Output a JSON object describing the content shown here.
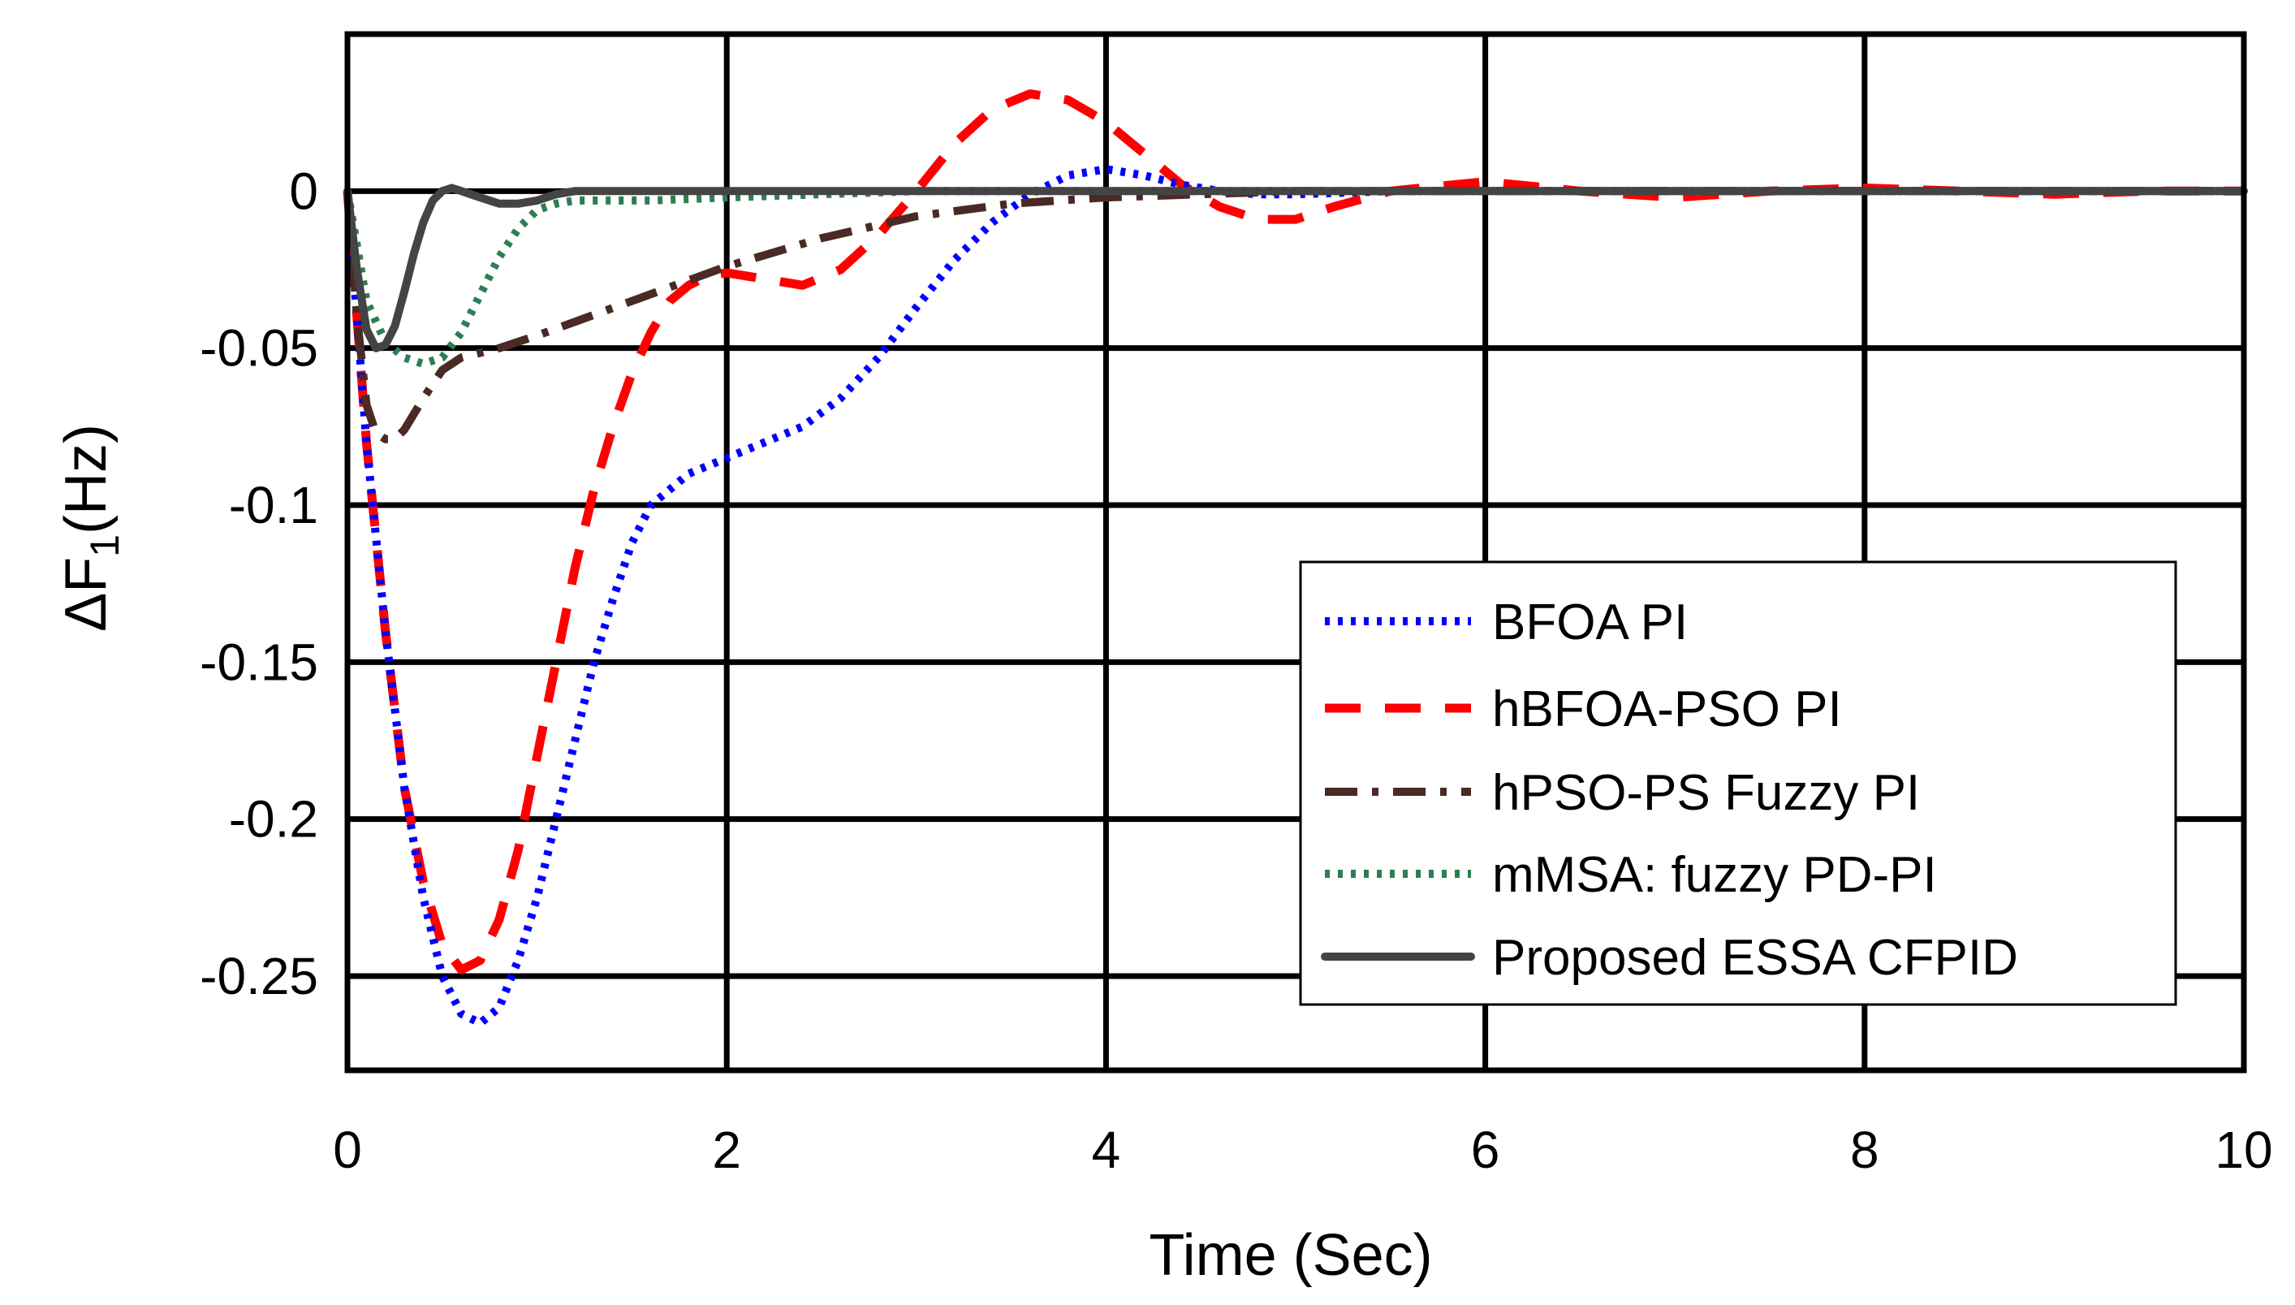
{
  "chart_data": {
    "type": "line",
    "title": "",
    "xlabel": "Time (Sec)",
    "ylabel_main": "ΔF",
    "ylabel_sub": "1",
    "ylabel_unit": "(Hz)",
    "xlim": [
      0,
      10
    ],
    "ylim": [
      -0.28,
      0.05
    ],
    "xticks": [
      0,
      2,
      4,
      6,
      8,
      10
    ],
    "xtick_labels": [
      "0",
      "2",
      "4",
      "6",
      "8",
      "10"
    ],
    "yticks": [
      0,
      -0.05,
      -0.1,
      -0.15,
      -0.2,
      -0.25
    ],
    "ytick_labels": [
      "0",
      "-0.05",
      "-0.1",
      "-0.15",
      "-0.2",
      "-0.25"
    ],
    "grid": true,
    "legend_position": "bottom-right",
    "series": [
      {
        "name": "BFOA PI",
        "color": "#0000ff",
        "dash": "dotted",
        "x": [
          0,
          0.1,
          0.2,
          0.3,
          0.4,
          0.5,
          0.6,
          0.7,
          0.8,
          0.9,
          1.0,
          1.1,
          1.2,
          1.3,
          1.4,
          1.5,
          1.6,
          1.7,
          1.8,
          2.0,
          2.2,
          2.4,
          2.6,
          2.8,
          3.0,
          3.2,
          3.4,
          3.6,
          3.8,
          4.0,
          4.2,
          4.4,
          4.6,
          4.8,
          5.0,
          5.5,
          6.0,
          7.0,
          8.0,
          9.0,
          10.0
        ],
        "y": [
          0,
          -0.08,
          -0.14,
          -0.19,
          -0.225,
          -0.25,
          -0.262,
          -0.265,
          -0.26,
          -0.245,
          -0.225,
          -0.2,
          -0.175,
          -0.15,
          -0.13,
          -0.112,
          -0.1,
          -0.095,
          -0.09,
          -0.085,
          -0.08,
          -0.075,
          -0.066,
          -0.053,
          -0.037,
          -0.022,
          -0.01,
          -0.001,
          0.005,
          0.007,
          0.005,
          0.002,
          0.0,
          -0.001,
          -0.001,
          0.0,
          0.0,
          0.0,
          0.0,
          0.0,
          0.0
        ]
      },
      {
        "name": "hBFOA-PSO PI",
        "color": "#ff0000",
        "dash": "dashed",
        "x": [
          0,
          0.1,
          0.2,
          0.3,
          0.4,
          0.5,
          0.6,
          0.7,
          0.8,
          0.9,
          1.0,
          1.1,
          1.2,
          1.3,
          1.4,
          1.5,
          1.6,
          1.7,
          1.8,
          1.9,
          2.0,
          2.2,
          2.4,
          2.6,
          2.8,
          3.0,
          3.2,
          3.4,
          3.6,
          3.8,
          4.0,
          4.2,
          4.4,
          4.6,
          4.8,
          5.0,
          5.2,
          5.5,
          6.0,
          6.5,
          7.0,
          7.5,
          8.0,
          8.5,
          9.0,
          9.5,
          10.0
        ],
        "y": [
          0,
          -0.08,
          -0.14,
          -0.19,
          -0.22,
          -0.24,
          -0.248,
          -0.245,
          -0.232,
          -0.21,
          -0.18,
          -0.15,
          -0.12,
          -0.095,
          -0.075,
          -0.058,
          -0.045,
          -0.035,
          -0.03,
          -0.027,
          -0.026,
          -0.028,
          -0.03,
          -0.025,
          -0.014,
          0.0,
          0.015,
          0.026,
          0.031,
          0.029,
          0.022,
          0.012,
          0.002,
          -0.005,
          -0.009,
          -0.009,
          -0.005,
          0.0,
          0.003,
          0.0,
          -0.002,
          0.0,
          0.001,
          0.0,
          -0.001,
          0.0,
          0.0
        ]
      },
      {
        "name": "hPSO-PS Fuzzy PI",
        "color": "#4a2a24",
        "dash": "dashdot",
        "x": [
          0,
          0.05,
          0.1,
          0.15,
          0.2,
          0.25,
          0.3,
          0.4,
          0.5,
          0.6,
          0.8,
          1.0,
          1.5,
          2.0,
          2.5,
          3.0,
          3.5,
          4.0,
          4.5,
          5.0,
          6.0,
          7.0,
          8.0,
          9.0,
          10.0
        ],
        "y": [
          0,
          -0.04,
          -0.068,
          -0.077,
          -0.079,
          -0.079,
          -0.076,
          -0.066,
          -0.057,
          -0.053,
          -0.05,
          -0.046,
          -0.035,
          -0.024,
          -0.015,
          -0.008,
          -0.004,
          -0.002,
          -0.001,
          0.0,
          0.0,
          0.0,
          0.0,
          0.0,
          0.0
        ]
      },
      {
        "name": "mMSA: fuzzy PD-PI",
        "color": "#2e7d52",
        "dash": "dotted",
        "x": [
          0,
          0.1,
          0.2,
          0.3,
          0.4,
          0.5,
          0.6,
          0.7,
          0.8,
          0.9,
          1.0,
          1.1,
          1.2,
          1.4,
          1.6,
          2.0,
          2.5,
          3.0,
          4.0,
          5.0,
          6.0,
          8.0,
          10.0
        ],
        "y": [
          0,
          -0.035,
          -0.048,
          -0.053,
          -0.055,
          -0.053,
          -0.045,
          -0.033,
          -0.021,
          -0.012,
          -0.006,
          -0.004,
          -0.003,
          -0.003,
          -0.003,
          -0.002,
          -0.001,
          0.0,
          0.0,
          0.0,
          0.0,
          0.0,
          0.0
        ]
      },
      {
        "name": "Proposed ESSA CFPID",
        "color": "#444444",
        "dash": "solid",
        "x": [
          0,
          0.05,
          0.1,
          0.15,
          0.2,
          0.25,
          0.3,
          0.35,
          0.4,
          0.45,
          0.5,
          0.55,
          0.6,
          0.65,
          0.7,
          0.8,
          0.9,
          1.0,
          1.1,
          1.2,
          1.3,
          1.5,
          2.0,
          3.0,
          5.0,
          10.0
        ],
        "y": [
          0,
          -0.025,
          -0.044,
          -0.05,
          -0.049,
          -0.043,
          -0.032,
          -0.02,
          -0.01,
          -0.003,
          0.0,
          0.001,
          0.0,
          -0.001,
          -0.002,
          -0.004,
          -0.004,
          -0.003,
          -0.001,
          0.0,
          0.0,
          0.0,
          0.0,
          0.0,
          0.0,
          0.0
        ]
      }
    ]
  }
}
